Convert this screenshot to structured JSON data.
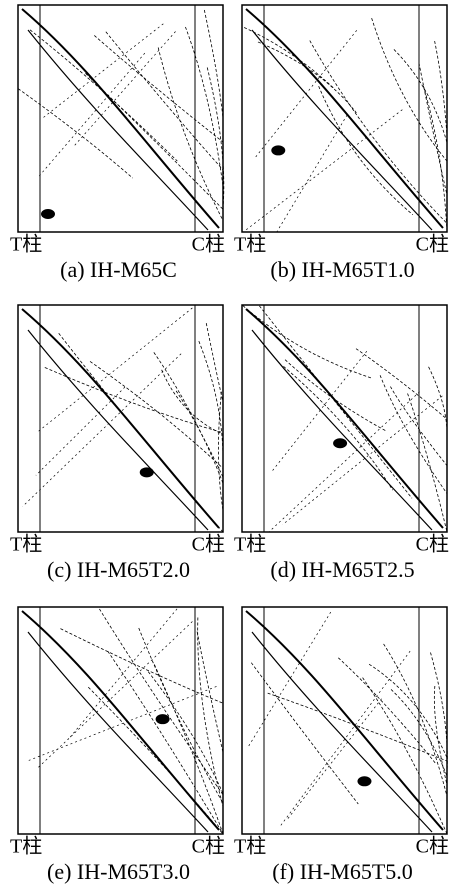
{
  "panels": [
    {
      "left_label": "T柱",
      "right_label": "C柱",
      "caption": "(a) IH-M65C"
    },
    {
      "left_label": "T柱",
      "right_label": "C柱",
      "caption": "(b) IH-M65T1.0"
    },
    {
      "left_label": "T柱",
      "right_label": "C柱",
      "caption": "(c) IH-M65T2.0"
    },
    {
      "left_label": "T柱",
      "right_label": "C柱",
      "caption": "(d) IH-M65T2.5"
    },
    {
      "left_label": "T柱",
      "right_label": "C柱",
      "caption": "(e) IH-M65T3.0"
    },
    {
      "left_label": "T柱",
      "right_label": "C柱",
      "caption": "(f) IH-M65T5.0"
    }
  ]
}
